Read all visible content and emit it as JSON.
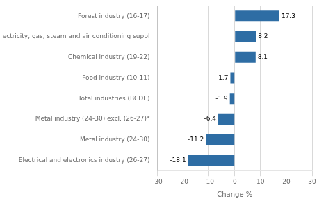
{
  "chart_data": {
    "type": "bar",
    "orientation": "horizontal",
    "categories": [
      "Electrical and electronics industry (26-27)",
      "Metal industry (24-30)",
      "Metal industry (24-30) excl. (26-27)*",
      "Total industries (BCDE)",
      "Food industry (10-11)",
      "Chemical industry (19-22)",
      "Electricity, gas, steam and air conditioning suppl",
      "Forest industry (16-17)"
    ],
    "values": [
      -18.1,
      -11.2,
      -6.4,
      -1.9,
      -1.7,
      8.1,
      8.2,
      17.3
    ],
    "color": "#2E6DA4",
    "xlabel": "Change %",
    "xlim": [
      -30,
      30
    ],
    "xticks": [
      -30,
      -20,
      -10,
      0,
      10,
      20,
      30
    ],
    "grid": true,
    "data_labels": true
  }
}
